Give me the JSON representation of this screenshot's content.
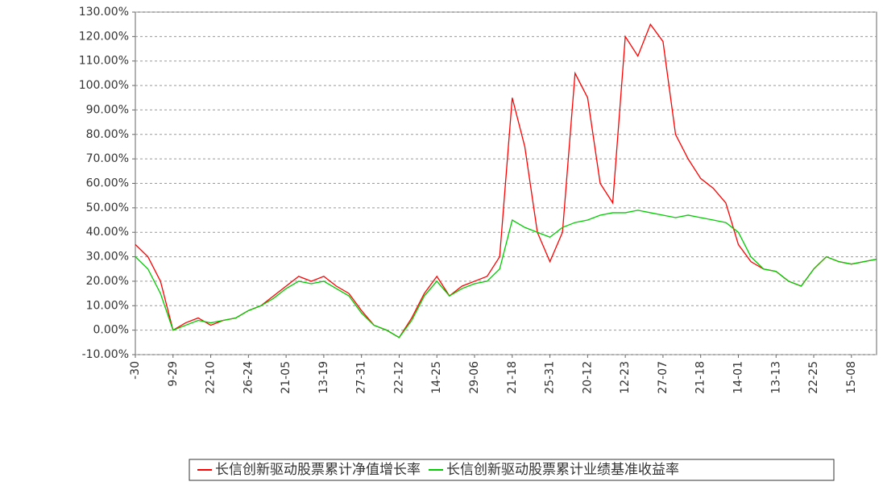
{
  "chart_data": {
    "type": "line",
    "categories": [
      "-30",
      null,
      null,
      "9-29",
      null,
      null,
      "22-10",
      null,
      null,
      "26-24",
      null,
      null,
      "21-05",
      null,
      null,
      "13-19",
      null,
      null,
      "27-31",
      null,
      null,
      "22-12",
      null,
      null,
      "14-25",
      null,
      null,
      "29-06",
      null,
      null,
      "21-18",
      null,
      null,
      "25-31",
      null,
      null,
      "20-12",
      null,
      null,
      "12-23",
      null,
      null,
      "27-07",
      null,
      null,
      "21-18",
      null,
      null,
      "14-01",
      null,
      null,
      "13-13",
      null,
      null,
      "22-25",
      null,
      null,
      "15-08",
      null,
      null
    ],
    "series": [
      {
        "name": "长信创新驱动股票累计净值增长率",
        "color": "#ff0000",
        "values": [
          35,
          30,
          20,
          0,
          3,
          5,
          2,
          4,
          5,
          8,
          10,
          14,
          18,
          22,
          20,
          22,
          18,
          15,
          8,
          2,
          0,
          -3,
          5,
          15,
          22,
          14,
          18,
          20,
          22,
          30,
          95,
          75,
          40,
          28,
          40,
          105,
          95,
          60,
          52,
          120,
          112,
          125,
          118,
          80,
          70,
          62,
          58,
          52,
          35,
          28,
          25,
          24,
          20,
          18,
          25,
          30,
          28,
          27,
          28,
          29
        ]
      },
      {
        "name": "长信创新驱动股票累计业绩基准收益率",
        "color": "#00cc00",
        "values": [
          30,
          25,
          15,
          0,
          2,
          4,
          3,
          4,
          5,
          8,
          10,
          13,
          17,
          20,
          19,
          20,
          17,
          14,
          7,
          2,
          0,
          -3,
          4,
          14,
          20,
          14,
          17,
          19,
          20,
          25,
          45,
          42,
          40,
          38,
          42,
          44,
          45,
          47,
          48,
          48,
          49,
          48,
          47,
          46,
          47,
          46,
          45,
          44,
          40,
          30,
          25,
          24,
          20,
          18,
          25,
          30,
          28,
          27,
          28,
          29
        ]
      }
    ],
    "ylim": [
      -10,
      130
    ],
    "yticks": [
      {
        "value": -10,
        "label": "-10.00%"
      },
      {
        "value": 0,
        "label": "0.00%"
      },
      {
        "value": 10,
        "label": "10.00%"
      },
      {
        "value": 20,
        "label": "20.00%"
      },
      {
        "value": 30,
        "label": "30.00%"
      },
      {
        "value": 40,
        "label": "40.00%"
      },
      {
        "value": 50,
        "label": "50.00%"
      },
      {
        "value": 60,
        "label": "60.00%"
      },
      {
        "value": 70,
        "label": "70.00%"
      },
      {
        "value": 80,
        "label": "80.00%"
      },
      {
        "value": 90,
        "label": "90.00%"
      },
      {
        "value": 100,
        "label": "100.00%"
      },
      {
        "value": 110,
        "label": "110.00%"
      },
      {
        "value": 120,
        "label": "120.00%"
      },
      {
        "value": 130,
        "label": "130.00%"
      }
    ],
    "grid": true
  }
}
